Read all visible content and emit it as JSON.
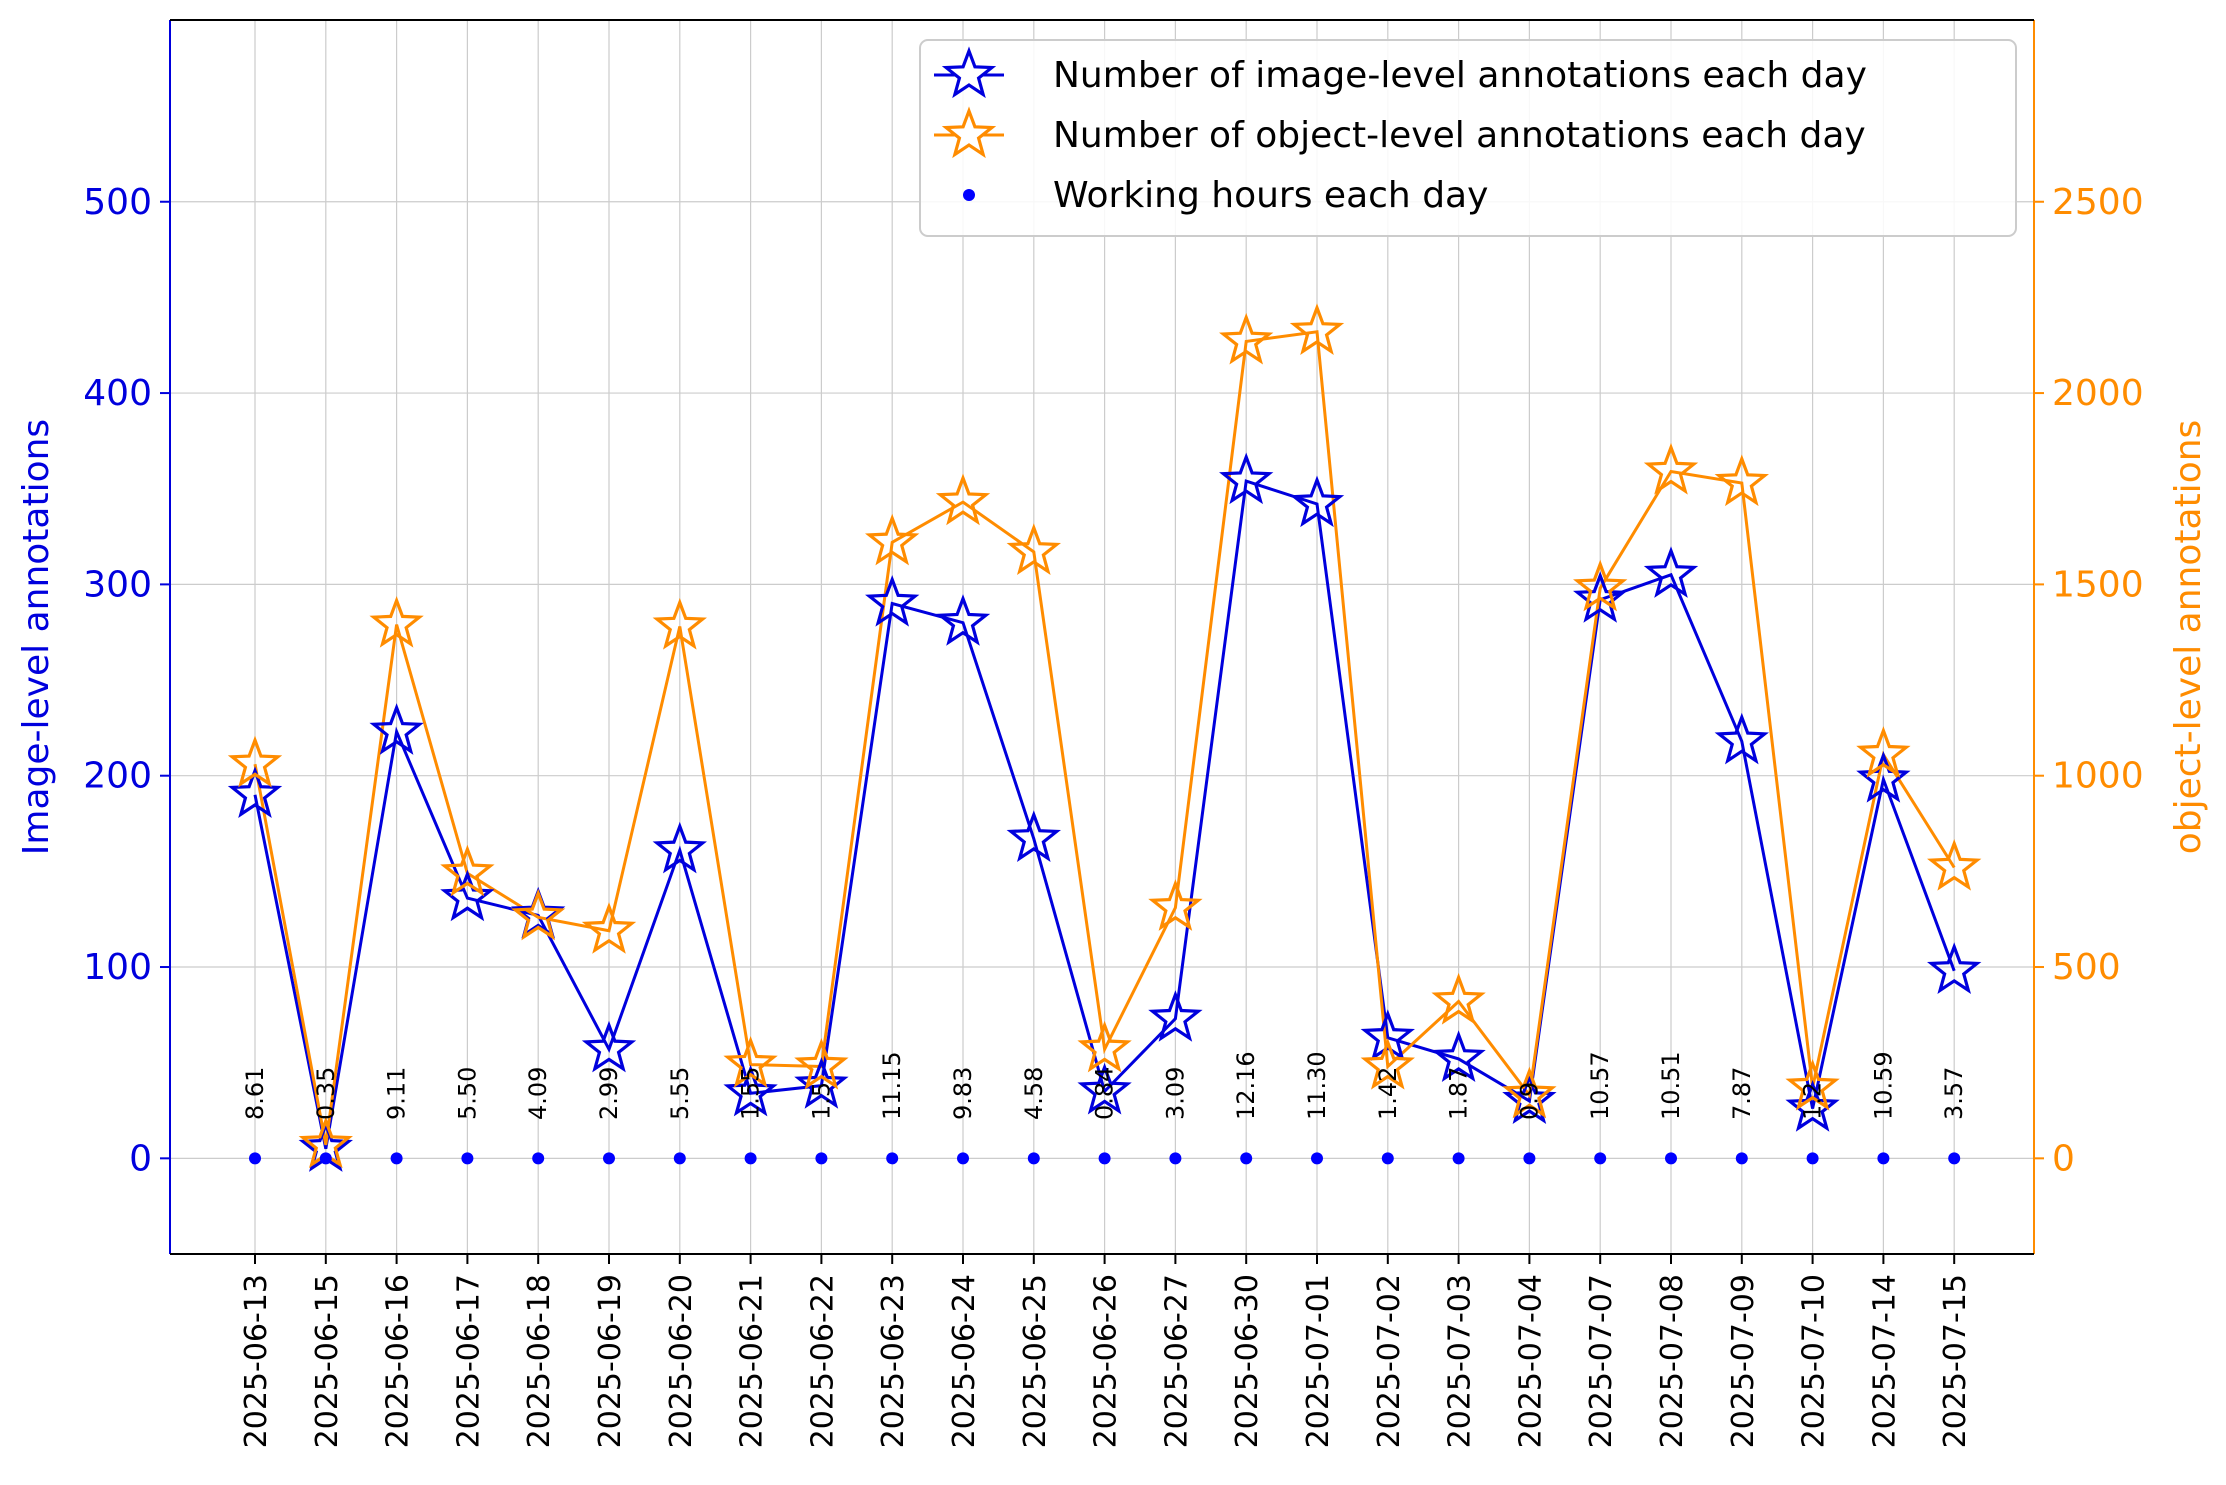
{
  "chart_data": {
    "type": "line",
    "categories": [
      "2025-06-13",
      "2025-06-15",
      "2025-06-16",
      "2025-06-17",
      "2025-06-18",
      "2025-06-19",
      "2025-06-20",
      "2025-06-21",
      "2025-06-22",
      "2025-06-23",
      "2025-06-24",
      "2025-06-25",
      "2025-06-26",
      "2025-06-27",
      "2025-06-30",
      "2025-07-01",
      "2025-07-02",
      "2025-07-03",
      "2025-07-04",
      "2025-07-07",
      "2025-07-08",
      "2025-07-09",
      "2025-07-10",
      "2025-07-14",
      "2025-07-15"
    ],
    "series": [
      {
        "name": "Number of image-level annotations each day",
        "axis": "left",
        "color": "#0000dd",
        "marker": "star",
        "values": [
          190,
          5,
          223,
          136,
          127,
          57,
          161,
          34,
          38,
          290,
          280,
          167,
          35,
          73,
          354,
          342,
          63,
          52,
          30,
          292,
          305,
          218,
          26,
          198,
          98
        ]
      },
      {
        "name": "Number of object-level annotations each day",
        "axis": "right",
        "color": "#ff8c00",
        "marker": "star",
        "values": [
          1030,
          35,
          1395,
          745,
          630,
          595,
          1390,
          245,
          240,
          1610,
          1715,
          1585,
          285,
          655,
          2135,
          2160,
          240,
          410,
          165,
          1490,
          1795,
          1765,
          185,
          1055,
          760
        ]
      },
      {
        "name": "Working hours each day",
        "axis": "left",
        "color": "#0000ff",
        "marker": "dot",
        "values": [
          0,
          0,
          0,
          0,
          0,
          0,
          0,
          0,
          0,
          0,
          0,
          0,
          0,
          0,
          0,
          0,
          0,
          0,
          0,
          0,
          0,
          0,
          0,
          0,
          0
        ]
      }
    ],
    "hour_labels": [
      "8.61",
      "0.35",
      "9.11",
      "5.50",
      "4.09",
      "2.99",
      "5.55",
      "1.55",
      "1.5",
      "11.15",
      "9.83",
      "4.58",
      "0.84",
      "3.09",
      "12.16",
      "11.30",
      "1.42",
      "1.87",
      "0.9",
      "10.57",
      "10.51",
      "7.87",
      "1.2",
      "10.59",
      "3.57"
    ],
    "y_left": {
      "label": "Image-level annotations",
      "ylim": [
        -50,
        500
      ],
      "ticks": [
        0,
        100,
        200,
        300,
        400,
        500
      ],
      "color": "#0000dd"
    },
    "y_right": {
      "label": "object-level annotations",
      "ylim": [
        -250,
        2500
      ],
      "ticks": [
        0,
        500,
        1000,
        1500,
        2000,
        2500
      ],
      "color": "#ff8c00"
    },
    "grid": true,
    "legend_position": "top-right"
  }
}
